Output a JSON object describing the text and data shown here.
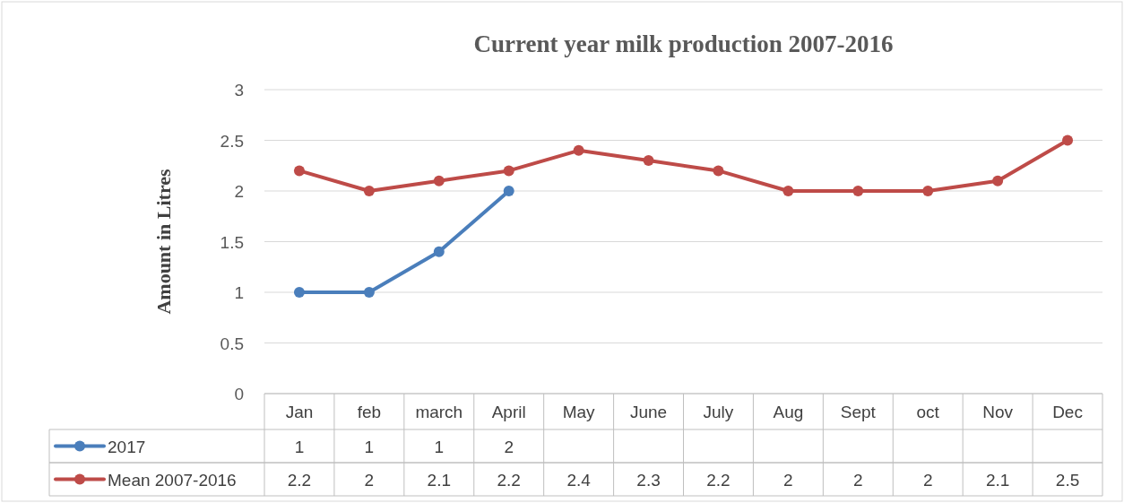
{
  "chart_data": {
    "type": "line",
    "title": "Current year milk production 2007-2016",
    "ylabel": "Amount in Litres",
    "categories": [
      "Jan",
      "feb",
      "march",
      "April",
      "May",
      "June",
      "July",
      "Aug",
      "Sept",
      "oct",
      "Nov",
      "Dec"
    ],
    "series": [
      {
        "name": "2017",
        "color": "#4a7ebb",
        "values": [
          1,
          1,
          1.4,
          2,
          null,
          null,
          null,
          null,
          null,
          null,
          null,
          null
        ],
        "value_labels": [
          "1",
          "1",
          "1",
          "2",
          null,
          null,
          null,
          null,
          null,
          null,
          null,
          null
        ]
      },
      {
        "name": "Mean 2007-2016",
        "color": "#be4b48",
        "values": [
          2.2,
          2,
          2.1,
          2.2,
          2.4,
          2.3,
          2.2,
          2,
          2,
          2,
          2.1,
          2.5
        ],
        "value_labels": [
          "2.2",
          "2",
          "2.1",
          "2.2",
          "2.4",
          "2.3",
          "2.2",
          "2",
          "2",
          "2",
          "2.1",
          "2.5"
        ]
      }
    ],
    "ylim": [
      0,
      3
    ],
    "yticks": [
      0,
      0.5,
      1,
      1.5,
      2,
      2.5,
      3
    ],
    "grid": "y",
    "legend": "bottom",
    "marker": "circle",
    "line_style": "solid"
  }
}
